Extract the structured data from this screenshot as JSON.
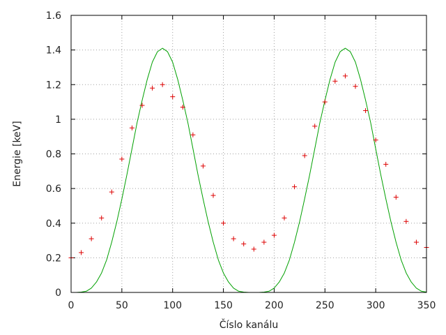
{
  "chart_data": {
    "type": "scatter",
    "title": "",
    "xlabel": "Číslo kanálu",
    "ylabel": "Energie [keV]",
    "xlim": [
      0,
      350
    ],
    "ylim": [
      0,
      1.6
    ],
    "grid": true,
    "x_ticks": [
      "0",
      "50",
      "100",
      "150",
      "200",
      "250",
      "300",
      "350"
    ],
    "y_ticks": [
      "0",
      "0.2",
      "0.4",
      "0.6",
      "0.8",
      "1",
      "1.2",
      "1.4",
      "1.6"
    ],
    "series": [
      {
        "style": "points",
        "marker": "plus",
        "color": "#dd0000",
        "x": [
          0,
          10,
          20,
          30,
          40,
          50,
          60,
          70,
          80,
          90,
          100,
          110,
          120,
          130,
          140,
          150,
          160,
          170,
          180,
          190,
          200,
          210,
          220,
          230,
          240,
          250,
          260,
          270,
          280,
          290,
          300,
          310,
          320,
          330,
          340,
          350
        ],
        "y": [
          0.2,
          0.23,
          0.31,
          0.43,
          0.58,
          0.77,
          0.95,
          1.08,
          1.18,
          1.2,
          1.13,
          1.07,
          0.91,
          0.73,
          0.56,
          0.4,
          0.31,
          0.28,
          0.25,
          0.29,
          0.33,
          0.43,
          0.61,
          0.79,
          0.96,
          1.1,
          1.22,
          1.25,
          1.19,
          1.05,
          0.88,
          0.74,
          0.55,
          0.41,
          0.29,
          0.26
        ]
      },
      {
        "style": "line",
        "color": "#00a000",
        "x": [
          5,
          10,
          15,
          20,
          25,
          30,
          35,
          40,
          45,
          50,
          55,
          60,
          65,
          70,
          75,
          80,
          85,
          90,
          95,
          100,
          105,
          110,
          115,
          120,
          125,
          130,
          135,
          140,
          145,
          150,
          155,
          160,
          165,
          170,
          175,
          185,
          190,
          195,
          200,
          205,
          210,
          215,
          220,
          225,
          230,
          235,
          240,
          245,
          250,
          255,
          260,
          265,
          270,
          275,
          280,
          285,
          290,
          295,
          300,
          305,
          310,
          315,
          320,
          325,
          330,
          335,
          340,
          345,
          350
        ],
        "y": [
          0.0,
          0.002,
          0.007,
          0.025,
          0.06,
          0.112,
          0.188,
          0.29,
          0.408,
          0.54,
          0.68,
          0.83,
          0.98,
          1.11,
          1.23,
          1.33,
          1.39,
          1.41,
          1.39,
          1.33,
          1.23,
          1.11,
          0.98,
          0.83,
          0.68,
          0.54,
          0.408,
          0.29,
          0.188,
          0.112,
          0.06,
          0.025,
          0.007,
          0.002,
          0.0,
          0.0,
          0.002,
          0.007,
          0.025,
          0.06,
          0.112,
          0.188,
          0.29,
          0.408,
          0.54,
          0.68,
          0.83,
          0.98,
          1.11,
          1.23,
          1.33,
          1.39,
          1.41,
          1.39,
          1.33,
          1.23,
          1.11,
          0.98,
          0.83,
          0.68,
          0.54,
          0.408,
          0.29,
          0.188,
          0.112,
          0.06,
          0.025,
          0.007,
          0.002
        ]
      }
    ]
  }
}
